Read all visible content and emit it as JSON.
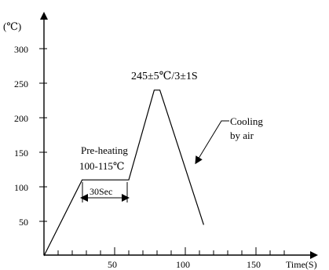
{
  "chart_data": {
    "type": "line",
    "title": "",
    "ylabel": "(℃)",
    "xlabel": "Time(S)",
    "y_ticks": [
      "300",
      "250",
      "200",
      "150",
      "100",
      "50"
    ],
    "x_ticks": [
      "50",
      "100",
      "150"
    ],
    "series": [
      {
        "points": [
          {
            "x": 0,
            "y": 0
          },
          {
            "x": 27,
            "y": 110
          },
          {
            "x": 60,
            "y": 110
          },
          {
            "x": 78,
            "y": 240
          },
          {
            "x": 82,
            "y": 240
          },
          {
            "x": 113,
            "y": 45
          }
        ]
      }
    ],
    "annotations": {
      "peak": "245±5℃/3±1S",
      "preheat_line1": "Pre-heating",
      "preheat_line2": "100-115℃",
      "duration": "30Sec",
      "cooling_line1": "Cooling",
      "cooling_line2": "by air"
    }
  }
}
